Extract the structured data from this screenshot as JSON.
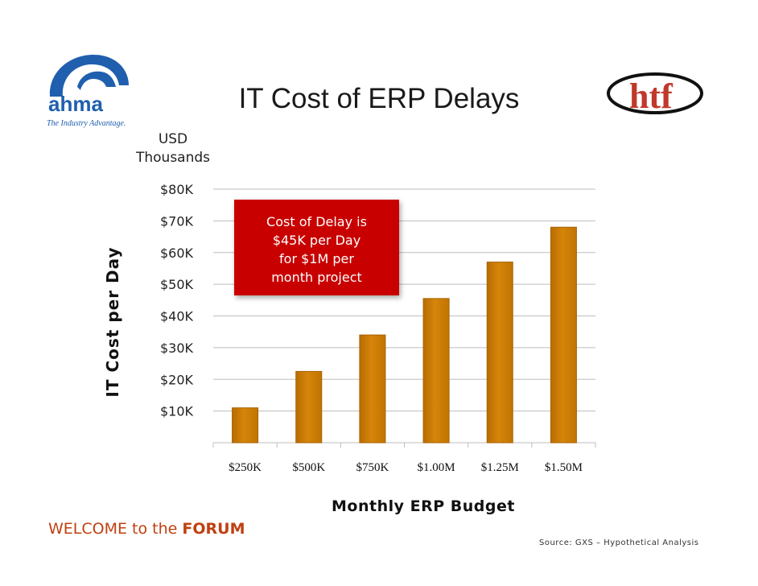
{
  "slide": {
    "title": "IT Cost of ERP Delays",
    "unit_line1": "USD",
    "unit_line2": "Thousands",
    "callout_lines": [
      "Cost of Delay is",
      "$45K per Day",
      "for $1M per",
      "month project"
    ],
    "welcome_prefix": "WELCOME to the ",
    "welcome_emphasis": "FORUM",
    "source": "Source: GXS – Hypothetical Analysis",
    "logo_left": {
      "wordmark": "ahma",
      "tagline": "The Industry Advantage."
    },
    "logo_right": {
      "wordmark": "htf"
    }
  },
  "colors": {
    "bar": "#d6850a",
    "bar_edge": "#a86200",
    "callout": "#c80000",
    "welcome": "#c04010"
  },
  "chart_data": {
    "type": "bar",
    "title": "IT Cost of ERP Delays",
    "xlabel": "Monthly ERP Budget",
    "ylabel": "IT Cost per Day",
    "categories": [
      "$250K",
      "$500K",
      "$750K",
      "$1.00M",
      "$1.25M",
      "$1.50M"
    ],
    "values": [
      11,
      22.5,
      34,
      45.5,
      57,
      68
    ],
    "ylim": [
      0,
      80
    ],
    "yticks": [
      10,
      20,
      30,
      40,
      50,
      60,
      70,
      80
    ],
    "ytick_labels": [
      "$10K",
      "$20K",
      "$30K",
      "$40K",
      "$50K",
      "$60K",
      "$70K",
      "$80K"
    ],
    "grid": true,
    "legend": "none"
  }
}
